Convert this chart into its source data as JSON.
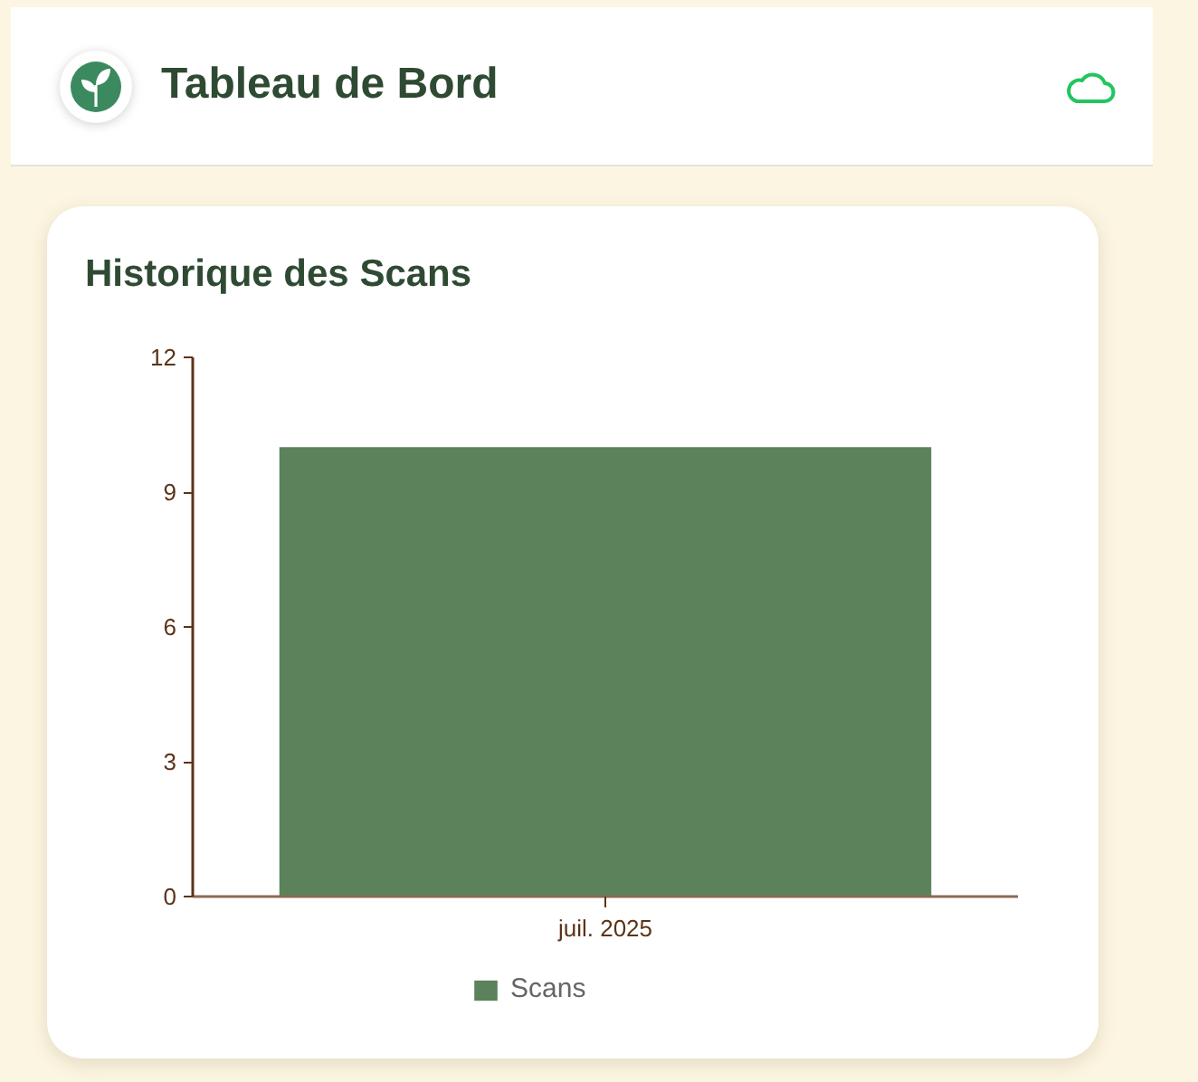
{
  "chart_data": {
    "type": "bar",
    "title": "Tableau de Bord",
    "subtitle": "Historique des Scans",
    "categories": [
      "juil. 2025"
    ],
    "series": [
      {
        "name": "Scans",
        "color": "#5b825a",
        "values": [
          10
        ]
      }
    ],
    "ylim": [
      0,
      12
    ],
    "yticks": [
      0,
      3,
      6,
      9,
      12
    ],
    "grid": false,
    "legend": "bottom"
  }
}
